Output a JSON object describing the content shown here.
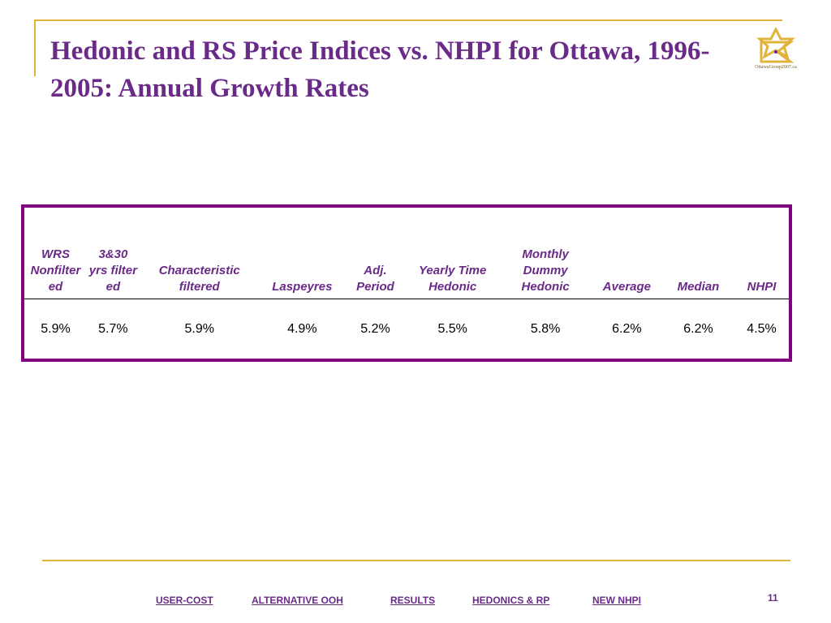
{
  "title": "Hedonic and RS Price Indices vs. NHPI for Ottawa, 1996-2005: Annual Growth Rates",
  "logo": {
    "icon": "star-sigma-logo-icon",
    "text": "OttawaGroup2007.ca",
    "color": "#e2b33a"
  },
  "table": {
    "headers": [
      "WRS Nonfilter ed",
      "3&30 yrs filter ed",
      "Characteristic filtered",
      "Laspeyres",
      "Adj. Period",
      "Yearly Time Hedonic",
      "Monthly Dummy Hedonic",
      "Average",
      "Median",
      "NHPI"
    ],
    "values": [
      "5.9%",
      "5.7%",
      "5.9%",
      "4.9%",
      "5.2%",
      "5.5%",
      "5.8%",
      "6.2%",
      "6.2%",
      "4.5%"
    ]
  },
  "nav": {
    "items": [
      "USER-COST",
      "ALTERNATIVE OOH",
      "RESULTS",
      "HEDONICS & RP",
      "NEW NHPI"
    ]
  },
  "slide_number": "11",
  "colors": {
    "title": "#6a2a88",
    "border": "#800080",
    "accent": "#e2b33a"
  }
}
